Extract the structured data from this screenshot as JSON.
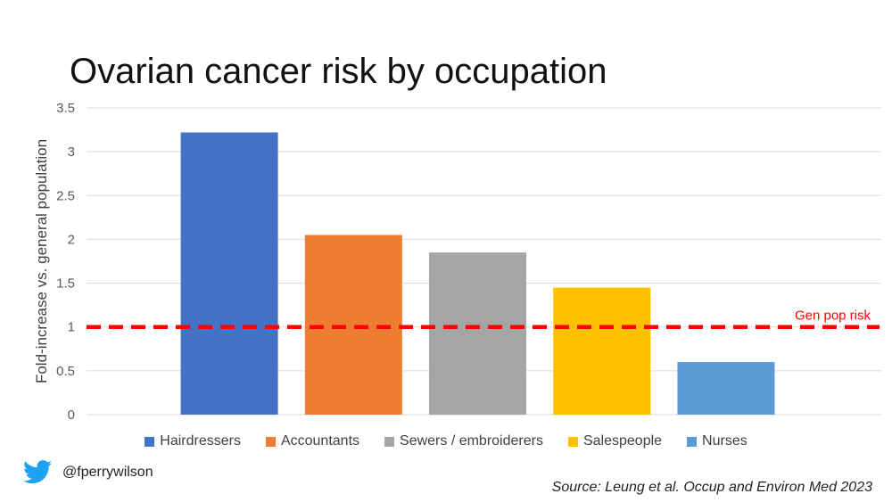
{
  "title": "Ovarian cancer risk by occupation",
  "handle": "@fperrywilson",
  "source": "Source: Leung et al. Occup and Environ Med 2023",
  "twitter_icon_color": "#1DA1F2",
  "chart_data": {
    "type": "bar",
    "title": "Ovarian cancer risk by occupation",
    "xlabel": "",
    "ylabel": "Fold-increase vs. general population",
    "ylim": [
      0,
      3.5
    ],
    "yticks": [
      "0",
      "0.5",
      "1",
      "1.5",
      "2",
      "2.5",
      "3",
      "3.5"
    ],
    "grid": true,
    "legend_position": "bottom",
    "series": [
      {
        "name": "Hairdressers",
        "value": 3.22,
        "color": "#4472C4"
      },
      {
        "name": "Accountants",
        "value": 2.05,
        "color": "#ED7D31"
      },
      {
        "name": "Sewers / embroiderers",
        "value": 1.85,
        "color": "#A5A5A5"
      },
      {
        "name": "Salespeople",
        "value": 1.45,
        "color": "#FFC000"
      },
      {
        "name": "Nurses",
        "value": 0.6,
        "color": "#5B9BD5"
      }
    ],
    "reference_line": {
      "label": "Gen pop risk",
      "value": 1,
      "color": "#FF0000",
      "style": "dashed"
    }
  }
}
